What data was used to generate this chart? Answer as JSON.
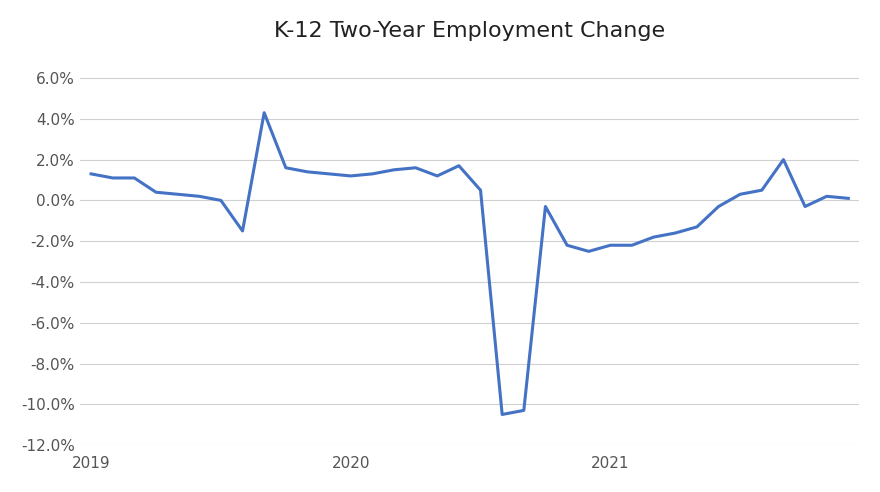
{
  "title": "K-12 Two-Year Employment Change",
  "line_color": "#4472C4",
  "line_width": 2.2,
  "background_color": "#ffffff",
  "grid_color": "#d0d0d0",
  "x_tick_labels": [
    "2019",
    "2020",
    "2021"
  ],
  "ylim": [
    -0.12,
    0.07
  ],
  "yticks": [
    -0.12,
    -0.1,
    -0.08,
    -0.06,
    -0.04,
    -0.02,
    0.0,
    0.02,
    0.04,
    0.06
  ],
  "x_vals": [
    0,
    1,
    2,
    3,
    4,
    5,
    6,
    7,
    8,
    9,
    10,
    11,
    12,
    13,
    14,
    15,
    16,
    17,
    18,
    19,
    20,
    21,
    22,
    23,
    24,
    25,
    26,
    27,
    28,
    29,
    30,
    31,
    32,
    33,
    34,
    35
  ],
  "y_vals": [
    0.013,
    0.011,
    0.011,
    0.004,
    0.003,
    0.002,
    0.0,
    -0.015,
    0.043,
    0.016,
    0.014,
    0.013,
    0.012,
    0.013,
    0.015,
    0.016,
    0.012,
    0.017,
    0.005,
    -0.105,
    -0.103,
    -0.003,
    -0.022,
    -0.025,
    -0.022,
    -0.022,
    -0.018,
    -0.016,
    -0.013,
    -0.003,
    0.003,
    0.005,
    0.02,
    -0.003,
    0.002,
    0.001
  ],
  "xlim": [
    -0.5,
    35.5
  ],
  "x_tick_positions": [
    0,
    12,
    24
  ]
}
